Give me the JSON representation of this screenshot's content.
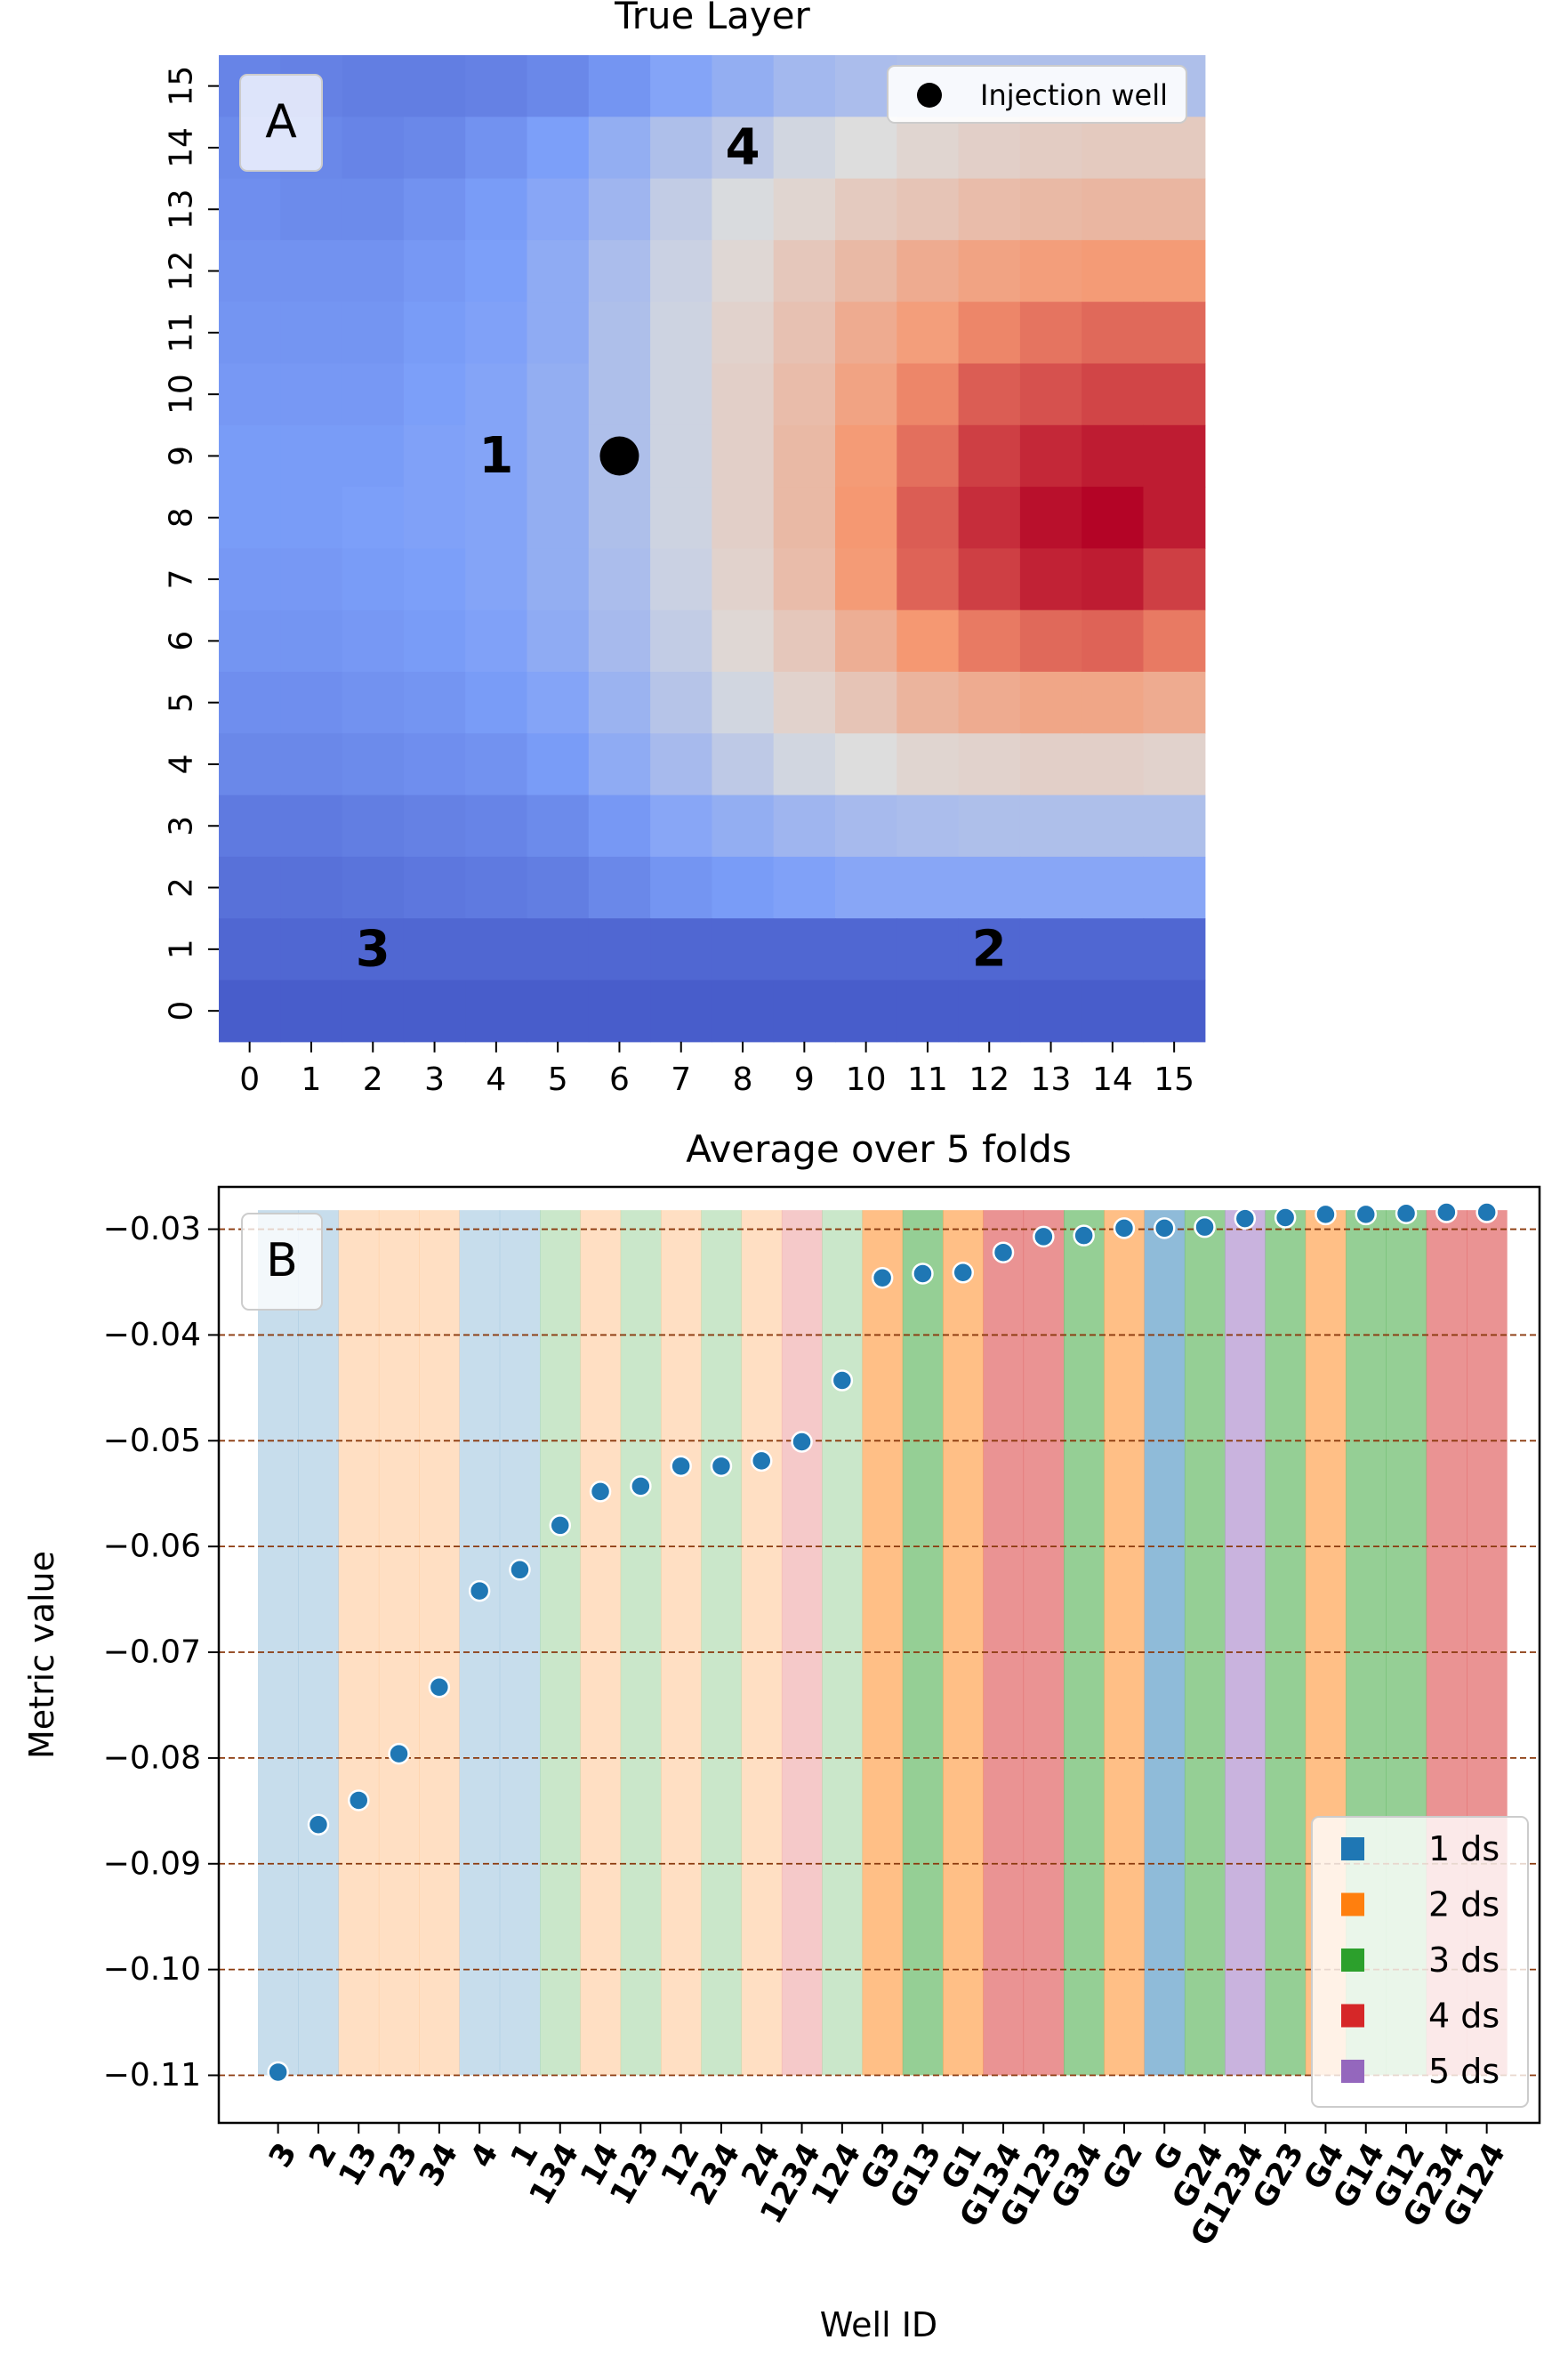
{
  "chart_data": [
    {
      "type": "heatmap",
      "title": "True Layer",
      "panel_label": "A",
      "x_ticks": [
        0,
        1,
        2,
        3,
        4,
        5,
        6,
        7,
        8,
        9,
        10,
        11,
        12,
        13,
        14,
        15
      ],
      "y_ticks": [
        0,
        1,
        2,
        3,
        4,
        5,
        6,
        7,
        8,
        9,
        10,
        11,
        12,
        13,
        14,
        15
      ],
      "colormap": "coolwarm",
      "rows_top_to_bottom": [
        [
          0.17,
          0.16,
          0.15,
          0.15,
          0.16,
          0.18,
          0.22,
          0.27,
          0.31,
          0.35,
          0.37,
          0.38,
          0.38,
          0.38,
          0.38,
          0.38
        ],
        [
          0.19,
          0.18,
          0.17,
          0.18,
          0.21,
          0.25,
          0.31,
          0.38,
          0.42,
          0.47,
          0.5,
          0.53,
          0.55,
          0.56,
          0.57,
          0.57
        ],
        [
          0.2,
          0.19,
          0.19,
          0.21,
          0.24,
          0.28,
          0.34,
          0.43,
          0.49,
          0.53,
          0.57,
          0.59,
          0.62,
          0.63,
          0.64,
          0.64
        ],
        [
          0.21,
          0.21,
          0.21,
          0.23,
          0.25,
          0.3,
          0.37,
          0.45,
          0.52,
          0.58,
          0.63,
          0.68,
          0.71,
          0.73,
          0.74,
          0.74
        ],
        [
          0.22,
          0.22,
          0.22,
          0.24,
          0.26,
          0.3,
          0.38,
          0.46,
          0.54,
          0.6,
          0.68,
          0.73,
          0.78,
          0.81,
          0.83,
          0.83
        ],
        [
          0.23,
          0.23,
          0.23,
          0.25,
          0.27,
          0.31,
          0.38,
          0.46,
          0.55,
          0.62,
          0.71,
          0.78,
          0.85,
          0.87,
          0.89,
          0.89
        ],
        [
          0.24,
          0.24,
          0.24,
          0.26,
          0.27,
          0.31,
          0.38,
          0.46,
          0.55,
          0.63,
          0.74,
          0.82,
          0.9,
          0.94,
          0.96,
          0.96
        ],
        [
          0.24,
          0.24,
          0.25,
          0.26,
          0.27,
          0.31,
          0.38,
          0.46,
          0.55,
          0.63,
          0.75,
          0.85,
          0.93,
          0.98,
          1.0,
          0.96
        ],
        [
          0.23,
          0.23,
          0.24,
          0.25,
          0.27,
          0.31,
          0.37,
          0.45,
          0.54,
          0.62,
          0.74,
          0.84,
          0.9,
          0.95,
          0.96,
          0.9
        ],
        [
          0.22,
          0.22,
          0.23,
          0.24,
          0.26,
          0.3,
          0.36,
          0.43,
          0.52,
          0.58,
          0.67,
          0.75,
          0.8,
          0.83,
          0.84,
          0.8
        ],
        [
          0.2,
          0.2,
          0.21,
          0.22,
          0.24,
          0.27,
          0.33,
          0.4,
          0.47,
          0.54,
          0.59,
          0.65,
          0.68,
          0.7,
          0.7,
          0.68
        ],
        [
          0.18,
          0.18,
          0.19,
          0.2,
          0.21,
          0.24,
          0.3,
          0.36,
          0.42,
          0.47,
          0.5,
          0.53,
          0.54,
          0.55,
          0.55,
          0.54
        ],
        [
          0.14,
          0.14,
          0.15,
          0.16,
          0.17,
          0.19,
          0.23,
          0.28,
          0.31,
          0.34,
          0.36,
          0.37,
          0.38,
          0.38,
          0.38,
          0.38
        ],
        [
          0.11,
          0.11,
          0.12,
          0.13,
          0.14,
          0.15,
          0.18,
          0.22,
          0.24,
          0.26,
          0.28,
          0.28,
          0.28,
          0.28,
          0.28,
          0.28
        ],
        [
          0.08,
          0.08,
          0.08,
          0.08,
          0.08,
          0.08,
          0.08,
          0.08,
          0.08,
          0.08,
          0.08,
          0.08,
          0.08,
          0.08,
          0.08,
          0.08
        ],
        [
          0.05,
          0.05,
          0.05,
          0.05,
          0.05,
          0.05,
          0.05,
          0.05,
          0.05,
          0.05,
          0.05,
          0.05,
          0.05,
          0.05,
          0.05,
          0.05
        ]
      ],
      "annotations": [
        {
          "text": "1",
          "x": 4,
          "y": 9
        },
        {
          "text": "2",
          "x": 12,
          "y": 1
        },
        {
          "text": "3",
          "x": 2,
          "y": 1
        },
        {
          "text": "4",
          "x": 8,
          "y": 14
        }
      ],
      "marker": {
        "x": 6,
        "y": 9,
        "label": "Injection well"
      },
      "legend_placement": "top-right"
    },
    {
      "type": "scatter",
      "title": "Average over 5 folds",
      "panel_label": "B",
      "xlabel": "Well ID",
      "ylabel": "Metric value",
      "ylim": [
        -0.1145,
        -0.026
      ],
      "y_ticks": [
        "−0.03",
        "−0.04",
        "−0.05",
        "−0.06",
        "−0.07",
        "−0.08",
        "−0.09",
        "−0.10",
        "−0.11"
      ],
      "y_tick_values": [
        -0.03,
        -0.04,
        -0.05,
        -0.06,
        -0.07,
        -0.08,
        -0.09,
        -0.1,
        -0.11
      ],
      "grid": "horizontal dashed",
      "categories": [
        "3",
        "2",
        "13",
        "23",
        "34",
        "4",
        "1",
        "134",
        "14",
        "123",
        "12",
        "234",
        "24",
        "1234",
        "124",
        "G3",
        "G13",
        "G1",
        "G134",
        "G123",
        "G34",
        "G2",
        "G",
        "G24",
        "G1234",
        "G23",
        "G4",
        "G14",
        "G12",
        "G234",
        "G124"
      ],
      "values": [
        -0.1097,
        -0.0863,
        -0.084,
        -0.0796,
        -0.0733,
        -0.0642,
        -0.0622,
        -0.058,
        -0.0548,
        -0.0543,
        -0.0524,
        -0.0524,
        -0.0519,
        -0.0501,
        -0.0443,
        -0.0346,
        -0.0342,
        -0.0341,
        -0.0322,
        -0.0307,
        -0.0306,
        -0.0299,
        -0.0299,
        -0.0298,
        -0.029,
        -0.0289,
        -0.0286,
        -0.0286,
        -0.0285,
        -0.0284,
        -0.0284
      ],
      "background_ds": [
        1,
        1,
        2,
        2,
        2,
        1,
        1,
        3,
        2,
        3,
        2,
        3,
        2,
        4,
        3,
        2,
        3,
        2,
        4,
        4,
        3,
        2,
        1,
        3,
        5,
        3,
        2,
        3,
        3,
        4,
        4
      ],
      "background_emphasis": [
        false,
        false,
        false,
        false,
        false,
        false,
        false,
        false,
        false,
        false,
        false,
        false,
        false,
        false,
        false,
        true,
        true,
        true,
        true,
        true,
        true,
        true,
        true,
        true,
        true,
        true,
        true,
        true,
        true,
        true,
        true
      ],
      "legend": [
        {
          "label": "1 ds",
          "color": "#1f77b4"
        },
        {
          "label": "2 ds",
          "color": "#ff7f0e"
        },
        {
          "label": "3 ds",
          "color": "#2ca02c"
        },
        {
          "label": "4 ds",
          "color": "#d62728"
        },
        {
          "label": "5 ds",
          "color": "#9467bd"
        }
      ],
      "point_color": "#1f77b4",
      "grid_color": "#8b3a0e",
      "legend_placement": "bottom-right"
    }
  ]
}
